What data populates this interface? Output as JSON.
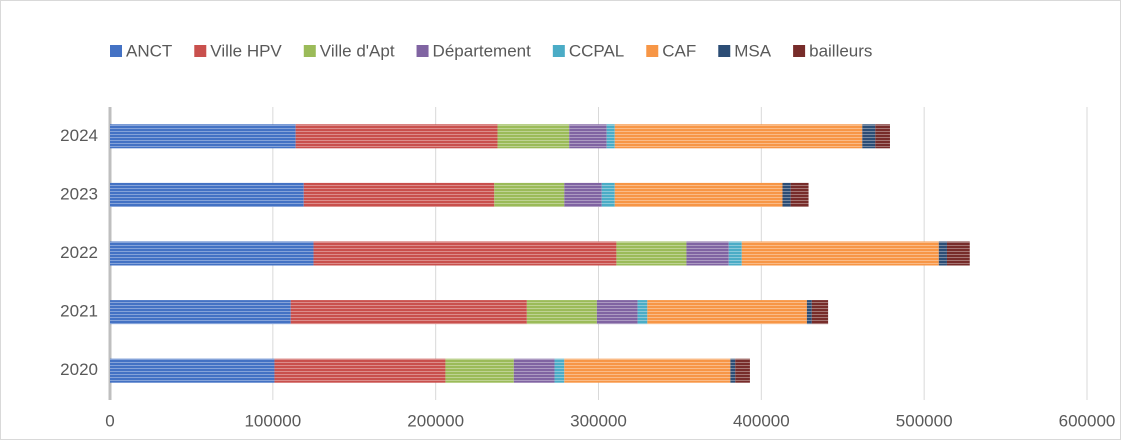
{
  "chart_data": {
    "type": "stacked-bar-horizontal",
    "categories": [
      "2020",
      "2021",
      "2022",
      "2023",
      "2024"
    ],
    "series": [
      {
        "name": "ANCT",
        "color": "#4472c4",
        "values": [
          101000,
          111000,
          125000,
          119000,
          114000
        ]
      },
      {
        "name": "Ville HPV",
        "color": "#c9504d",
        "values": [
          105000,
          145000,
          186000,
          117000,
          124000
        ]
      },
      {
        "name": "Ville d'Apt",
        "color": "#9bbb59",
        "values": [
          42000,
          43000,
          43000,
          43000,
          44000
        ]
      },
      {
        "name": "Département",
        "color": "#8064a2",
        "values": [
          25000,
          25000,
          26000,
          23000,
          23000
        ]
      },
      {
        "name": "CCPAL",
        "color": "#4bacc6",
        "values": [
          6000,
          6000,
          8000,
          8000,
          5000
        ]
      },
      {
        "name": "CAF",
        "color": "#f79646",
        "values": [
          102000,
          98000,
          121000,
          103000,
          152000
        ]
      },
      {
        "name": "MSA",
        "color": "#2c4d75",
        "values": [
          3000,
          3000,
          5000,
          5000,
          8000
        ]
      },
      {
        "name": "bailleurs",
        "color": "#772c2a",
        "values": [
          9000,
          10000,
          14000,
          11000,
          9000
        ]
      }
    ],
    "xlim": [
      0,
      600000
    ],
    "xticks": [
      0,
      100000,
      200000,
      300000,
      400000,
      500000,
      600000
    ],
    "grid": true,
    "legend": "top"
  }
}
